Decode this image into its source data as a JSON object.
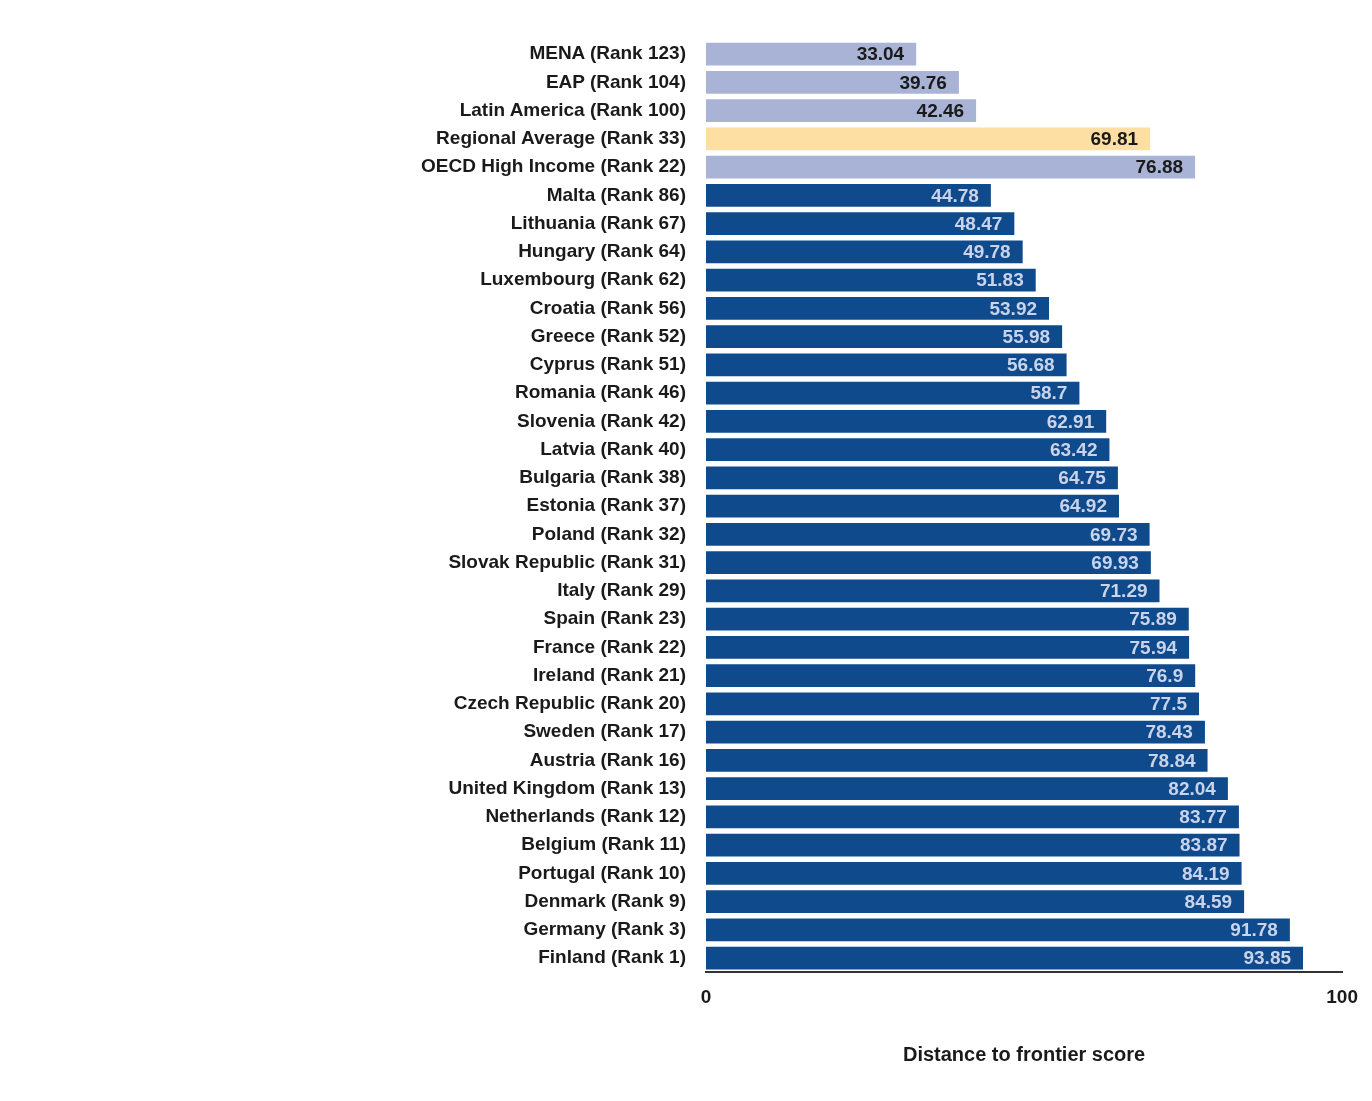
{
  "chart_data": {
    "type": "bar",
    "orientation": "horizontal",
    "xlabel": "Distance to frontier score",
    "categories": [
      "MENA (Rank 123)",
      "EAP (Rank 104)",
      "Latin America (Rank 100)",
      "Regional Average (Rank 33)",
      "OECD High Income (Rank 22)",
      "Malta (Rank 86)",
      "Lithuania (Rank 67)",
      "Hungary (Rank 64)",
      "Luxembourg (Rank 62)",
      "Croatia (Rank 56)",
      "Greece (Rank 52)",
      "Cyprus (Rank 51)",
      "Romania (Rank 46)",
      "Slovenia (Rank 42)",
      "Latvia (Rank 40)",
      "Bulgaria (Rank 38)",
      "Estonia (Rank 37)",
      "Poland (Rank 32)",
      "Slovak Republic (Rank 31)",
      "Italy (Rank 29)",
      "Spain (Rank 23)",
      "France (Rank 22)",
      "Ireland (Rank 21)",
      "Czech Republic (Rank 20)",
      "Sweden (Rank 17)",
      "Austria (Rank 16)",
      "United Kingdom (Rank 13)",
      "Netherlands (Rank 12)",
      "Belgium (Rank 11)",
      "Portugal (Rank 10)",
      "Denmark (Rank 9)",
      "Germany (Rank 3)",
      "Finland (Rank 1)"
    ],
    "values": [
      33.04,
      39.76,
      42.46,
      69.81,
      76.88,
      44.78,
      48.47,
      49.78,
      51.83,
      53.92,
      55.98,
      56.68,
      58.7,
      62.91,
      63.42,
      64.75,
      64.92,
      69.73,
      69.93,
      71.29,
      75.89,
      75.94,
      76.9,
      77.5,
      78.43,
      78.84,
      82.04,
      83.77,
      83.87,
      84.19,
      84.59,
      91.78,
      93.85
    ],
    "colors": [
      "#a9b3d6",
      "#a9b3d6",
      "#a9b3d6",
      "#fddfa4",
      "#a9b3d6",
      "#0f4a8c",
      "#0f4a8c",
      "#0f4a8c",
      "#0f4a8c",
      "#0f4a8c",
      "#0f4a8c",
      "#0f4a8c",
      "#0f4a8c",
      "#0f4a8c",
      "#0f4a8c",
      "#0f4a8c",
      "#0f4a8c",
      "#0f4a8c",
      "#0f4a8c",
      "#0f4a8c",
      "#0f4a8c",
      "#0f4a8c",
      "#0f4a8c",
      "#0f4a8c",
      "#0f4a8c",
      "#0f4a8c",
      "#0f4a8c",
      "#0f4a8c",
      "#0f4a8c",
      "#0f4a8c",
      "#0f4a8c",
      "#0f4a8c",
      "#0f4a8c"
    ],
    "xlim": [
      0,
      100
    ],
    "xticks": [
      0,
      100
    ],
    "data_labels": true,
    "grid": false,
    "legend": false
  }
}
